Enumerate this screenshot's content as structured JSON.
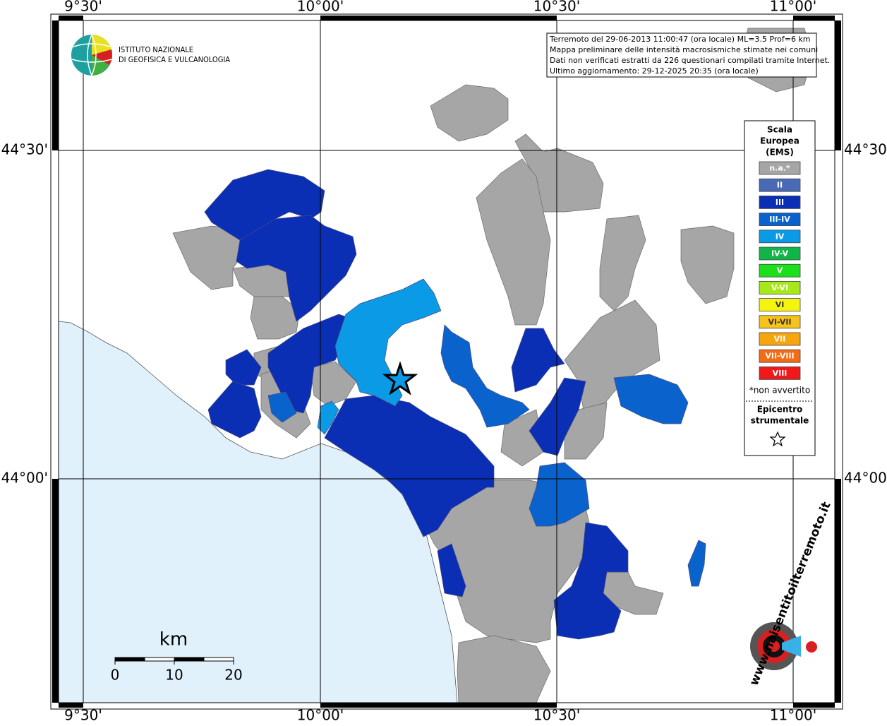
{
  "frame": {
    "top_labels": [
      "9°30'",
      "10°00'",
      "10°30'",
      "11°00'"
    ],
    "bottom_labels": [
      "9°30'",
      "10°00'",
      "10°30'",
      "11°00'"
    ],
    "left_labels": [
      "44°30'",
      "44°00'"
    ],
    "right_labels": [
      "44°30'",
      "44°00'"
    ]
  },
  "logo": {
    "line1": "ISTITUTO NAZIONALE",
    "line2": "DI GEOFISICA E VULCANOLOGIA"
  },
  "info": {
    "lines": [
      "Terremoto del 29-06-2013 11:00:47 (ora locale) ML=3.5 Prof=6 km",
      "Mappa preliminare delle intensità macrosismiche stimate nei comuni",
      "Dati non verificati estratti da 226 questionari compilati tramite Internet.",
      "Ultimo aggiornamento: 29-12-2025 20:35 (ora locale)"
    ]
  },
  "legend": {
    "title": [
      "Scala",
      "Europea",
      "(EMS)"
    ],
    "items": [
      {
        "label": "n.a.*",
        "color": "#a6a6a6"
      },
      {
        "label": "II",
        "color": "#4a6ab8"
      },
      {
        "label": "III",
        "color": "#0a2fb4"
      },
      {
        "label": "III-IV",
        "color": "#0a63cc"
      },
      {
        "label": "IV",
        "color": "#0a9ae6"
      },
      {
        "label": "IV-V",
        "color": "#10b548"
      },
      {
        "label": "V",
        "color": "#1de01d"
      },
      {
        "label": "V-VI",
        "color": "#a6e81a"
      },
      {
        "label": "VI",
        "color": "#f4f40e"
      },
      {
        "label": "VI-VII",
        "color": "#f6c31a"
      },
      {
        "label": "VII",
        "color": "#f7a50c"
      },
      {
        "label": "VII-VIII",
        "color": "#f56a12"
      },
      {
        "label": "VIII",
        "color": "#f01818"
      }
    ],
    "note": "*non avvertito",
    "epicentre": [
      "Epicentro",
      "strumentale"
    ]
  },
  "scale": {
    "unit": "km",
    "ticks": [
      0,
      10,
      20
    ]
  },
  "site": {
    "url": "www.haisentitoilterremoto.it"
  }
}
